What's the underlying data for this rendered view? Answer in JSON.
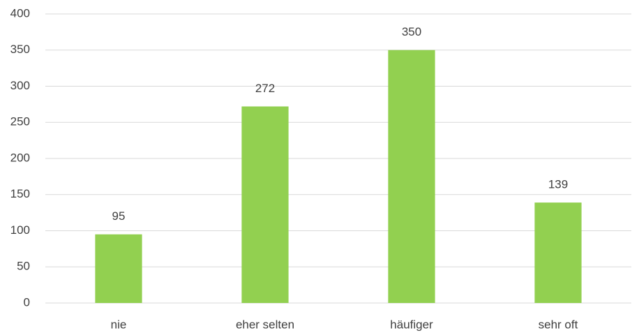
{
  "chart_data": {
    "type": "bar",
    "categories": [
      "nie",
      "eher selten",
      "häufiger",
      "sehr oft"
    ],
    "values": [
      95,
      272,
      350,
      139
    ],
    "color": "#92d050",
    "ylim": [
      0,
      400
    ],
    "yticks": [
      0,
      50,
      100,
      150,
      200,
      250,
      300,
      350,
      400
    ],
    "grid": true,
    "data_labels": true
  }
}
